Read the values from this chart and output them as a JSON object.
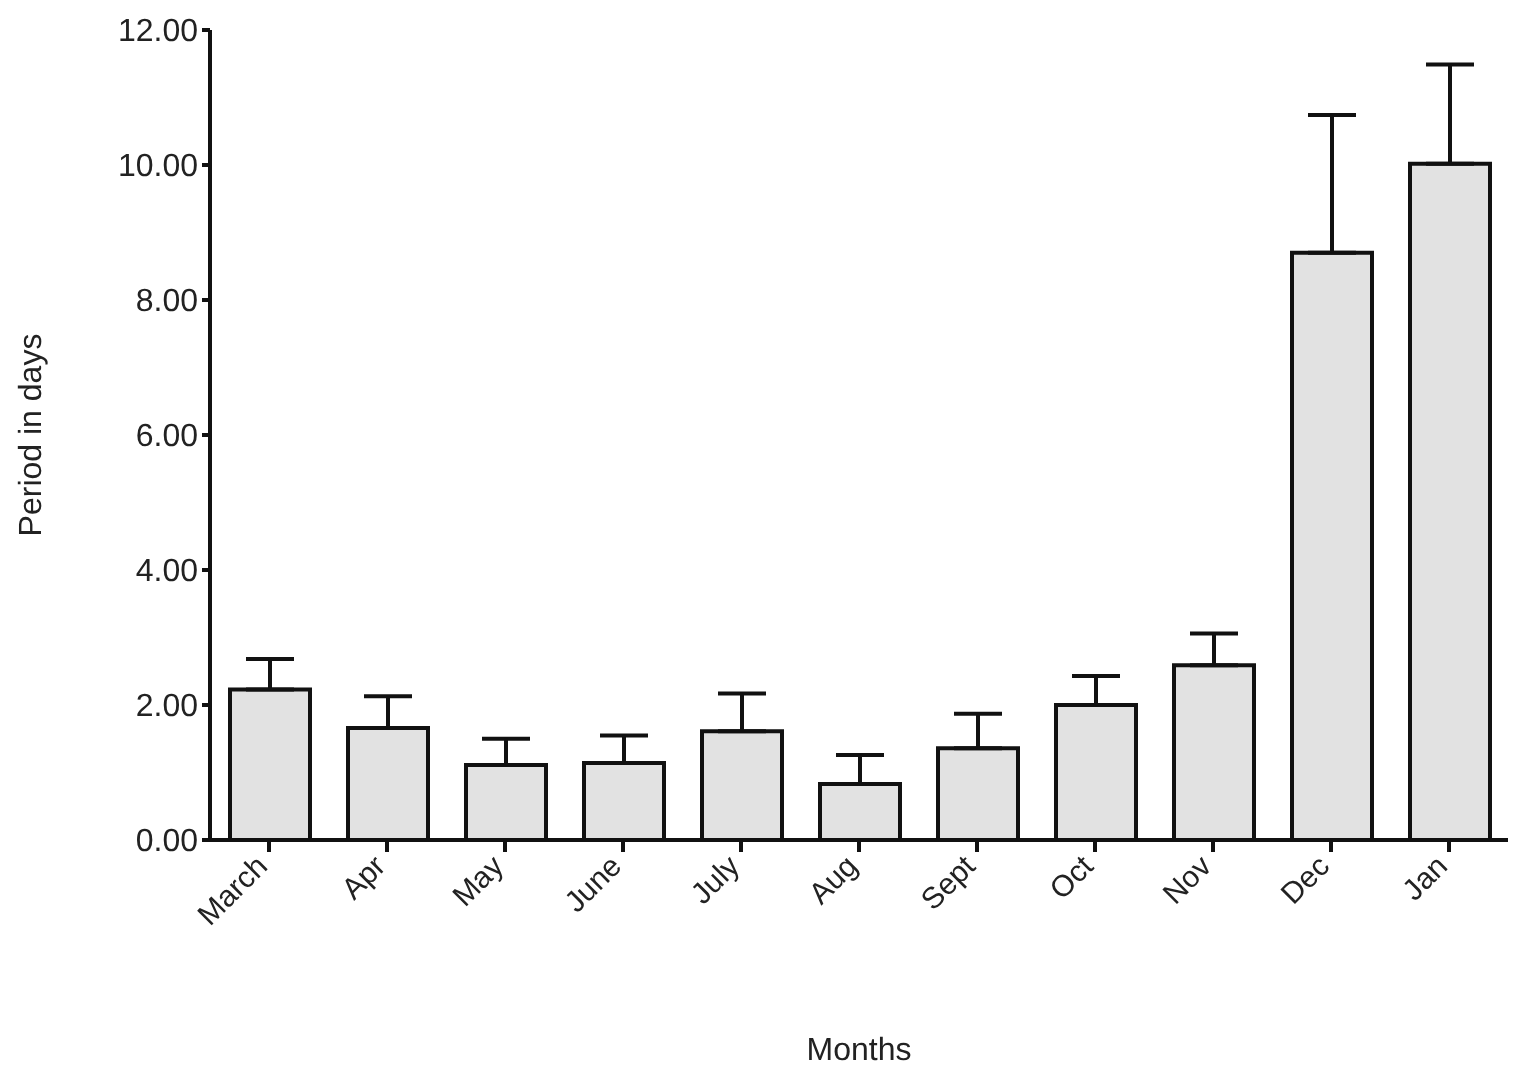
{
  "chart_data": {
    "type": "bar",
    "xlabel": "Months",
    "ylabel": "Period in days",
    "categories": [
      "March",
      "Apr",
      "May",
      "June",
      "July",
      "Aug",
      "Sept",
      "Oct",
      "Nov",
      "Dec",
      "Jan"
    ],
    "values": [
      2.23,
      1.66,
      1.11,
      1.14,
      1.61,
      0.83,
      1.36,
      2.0,
      2.59,
      8.7,
      10.02
    ],
    "errors": [
      [
        2.23,
        2.68
      ],
      [
        1.66,
        2.13
      ],
      [
        1.11,
        1.5
      ],
      [
        1.14,
        1.55
      ],
      [
        1.61,
        2.17
      ],
      [
        0.83,
        1.26
      ],
      [
        1.36,
        1.87
      ],
      [
        2.0,
        2.43
      ],
      [
        2.59,
        3.06
      ],
      [
        8.7,
        10.74
      ],
      [
        10.02,
        11.49
      ]
    ],
    "color": "#e2e2e2",
    "ylim": [
      0,
      12
    ],
    "yticks": [
      {
        "value": 0,
        "label": "0.00"
      },
      {
        "value": 2,
        "label": "2.00"
      },
      {
        "value": 4,
        "label": "4.00"
      },
      {
        "value": 6,
        "label": "6.00"
      },
      {
        "value": 8,
        "label": "8.00"
      },
      {
        "value": 10,
        "label": "10.00"
      },
      {
        "value": 12,
        "label": "12.00"
      }
    ],
    "grid": false,
    "legend": false
  }
}
